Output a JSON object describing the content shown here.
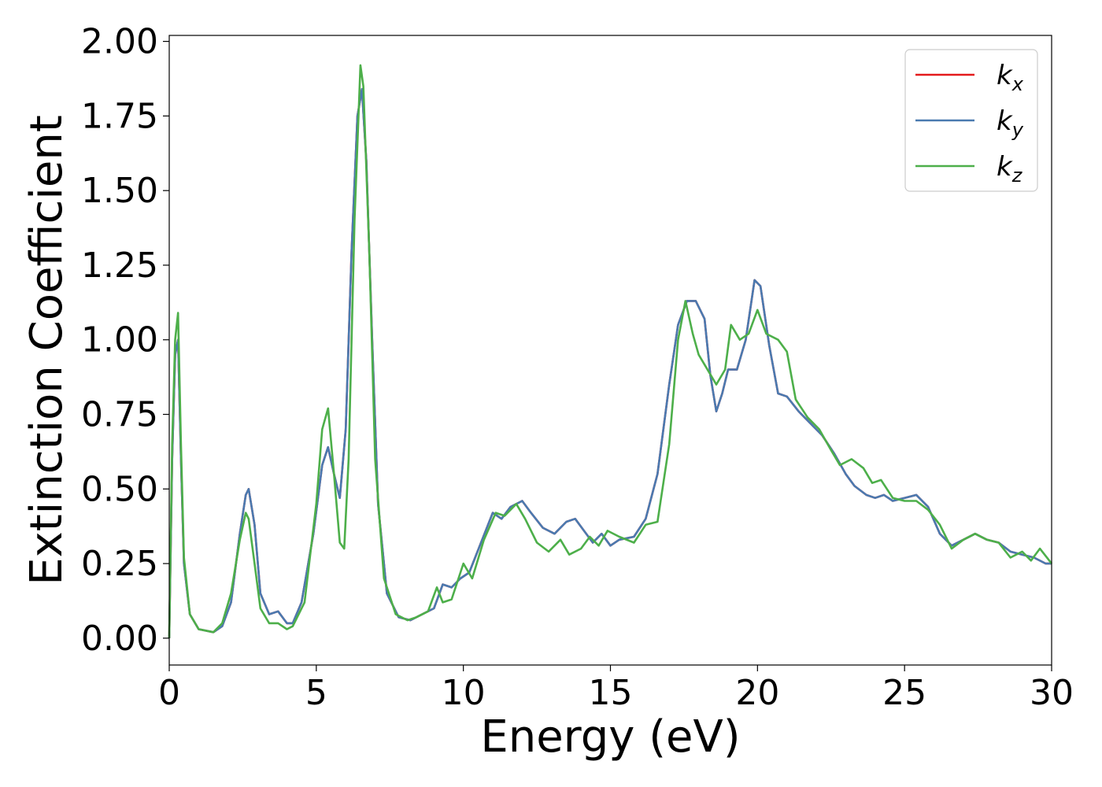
{
  "chart_data": {
    "type": "line",
    "xlabel": "Energy (eV)",
    "ylabel": "Extinction Coefficient",
    "xlim": [
      0,
      30
    ],
    "ylim": [
      -0.09,
      2.02
    ],
    "x_ticks": [
      "0",
      "5",
      "10",
      "15",
      "20",
      "25",
      "30"
    ],
    "y_ticks": [
      "0.00",
      "0.25",
      "0.50",
      "0.75",
      "1.00",
      "1.25",
      "1.50",
      "1.75",
      "2.00"
    ],
    "grid": false,
    "legend_position": "top-right",
    "series": [
      {
        "name": "k_x",
        "label_main": "k",
        "label_sub": "x",
        "color": "#e41a1c",
        "points": [
          [
            0,
            0.0
          ],
          [
            0.1,
            0.6
          ],
          [
            0.2,
            0.95
          ],
          [
            0.3,
            1.0
          ],
          [
            0.4,
            0.6
          ],
          [
            0.5,
            0.25
          ],
          [
            0.7,
            0.08
          ],
          [
            1.0,
            0.03
          ],
          [
            1.5,
            0.02
          ],
          [
            1.8,
            0.04
          ],
          [
            2.1,
            0.12
          ],
          [
            2.4,
            0.35
          ],
          [
            2.6,
            0.48
          ],
          [
            2.7,
            0.5
          ],
          [
            2.9,
            0.38
          ],
          [
            3.1,
            0.15
          ],
          [
            3.4,
            0.08
          ],
          [
            3.7,
            0.09
          ],
          [
            4.0,
            0.05
          ],
          [
            4.2,
            0.05
          ],
          [
            4.5,
            0.12
          ],
          [
            4.9,
            0.35
          ],
          [
            5.2,
            0.58
          ],
          [
            5.4,
            0.64
          ],
          [
            5.6,
            0.55
          ],
          [
            5.8,
            0.47
          ],
          [
            6.0,
            0.7
          ],
          [
            6.2,
            1.3
          ],
          [
            6.4,
            1.75
          ],
          [
            6.55,
            1.84
          ],
          [
            6.7,
            1.6
          ],
          [
            6.9,
            1.0
          ],
          [
            7.1,
            0.45
          ],
          [
            7.4,
            0.15
          ],
          [
            7.8,
            0.07
          ],
          [
            8.2,
            0.06
          ],
          [
            8.6,
            0.08
          ],
          [
            9.0,
            0.1
          ],
          [
            9.3,
            0.18
          ],
          [
            9.6,
            0.17
          ],
          [
            9.9,
            0.2
          ],
          [
            10.2,
            0.22
          ],
          [
            10.6,
            0.32
          ],
          [
            11.0,
            0.42
          ],
          [
            11.3,
            0.4
          ],
          [
            11.6,
            0.44
          ],
          [
            12.0,
            0.46
          ],
          [
            12.3,
            0.42
          ],
          [
            12.7,
            0.37
          ],
          [
            13.1,
            0.35
          ],
          [
            13.5,
            0.39
          ],
          [
            13.8,
            0.4
          ],
          [
            14.1,
            0.36
          ],
          [
            14.4,
            0.32
          ],
          [
            14.7,
            0.35
          ],
          [
            15.0,
            0.31
          ],
          [
            15.3,
            0.33
          ],
          [
            15.8,
            0.34
          ],
          [
            16.2,
            0.4
          ],
          [
            16.6,
            0.55
          ],
          [
            17.0,
            0.85
          ],
          [
            17.3,
            1.05
          ],
          [
            17.6,
            1.13
          ],
          [
            17.9,
            1.13
          ],
          [
            18.2,
            1.07
          ],
          [
            18.4,
            0.88
          ],
          [
            18.6,
            0.76
          ],
          [
            18.8,
            0.82
          ],
          [
            19.0,
            0.9
          ],
          [
            19.3,
            0.9
          ],
          [
            19.6,
            1.0
          ],
          [
            19.9,
            1.2
          ],
          [
            20.1,
            1.18
          ],
          [
            20.4,
            0.98
          ],
          [
            20.7,
            0.82
          ],
          [
            21.0,
            0.81
          ],
          [
            21.4,
            0.76
          ],
          [
            21.8,
            0.72
          ],
          [
            22.2,
            0.68
          ],
          [
            22.6,
            0.62
          ],
          [
            23.0,
            0.55
          ],
          [
            23.3,
            0.51
          ],
          [
            23.7,
            0.48
          ],
          [
            24.0,
            0.47
          ],
          [
            24.3,
            0.48
          ],
          [
            24.6,
            0.46
          ],
          [
            25.0,
            0.47
          ],
          [
            25.4,
            0.48
          ],
          [
            25.8,
            0.44
          ],
          [
            26.2,
            0.35
          ],
          [
            26.6,
            0.31
          ],
          [
            27.0,
            0.33
          ],
          [
            27.4,
            0.35
          ],
          [
            27.8,
            0.33
          ],
          [
            28.2,
            0.32
          ],
          [
            28.6,
            0.29
          ],
          [
            29.0,
            0.28
          ],
          [
            29.4,
            0.27
          ],
          [
            29.8,
            0.25
          ],
          [
            30.0,
            0.25
          ]
        ]
      },
      {
        "name": "k_y",
        "label_main": "k",
        "label_sub": "y",
        "color": "#4a7ab0",
        "points": [
          [
            0,
            0.0
          ],
          [
            0.1,
            0.6
          ],
          [
            0.2,
            0.95
          ],
          [
            0.3,
            1.0
          ],
          [
            0.4,
            0.6
          ],
          [
            0.5,
            0.25
          ],
          [
            0.7,
            0.08
          ],
          [
            1.0,
            0.03
          ],
          [
            1.5,
            0.02
          ],
          [
            1.8,
            0.04
          ],
          [
            2.1,
            0.12
          ],
          [
            2.4,
            0.35
          ],
          [
            2.6,
            0.48
          ],
          [
            2.7,
            0.5
          ],
          [
            2.9,
            0.38
          ],
          [
            3.1,
            0.15
          ],
          [
            3.4,
            0.08
          ],
          [
            3.7,
            0.09
          ],
          [
            4.0,
            0.05
          ],
          [
            4.2,
            0.05
          ],
          [
            4.5,
            0.12
          ],
          [
            4.9,
            0.35
          ],
          [
            5.2,
            0.58
          ],
          [
            5.4,
            0.64
          ],
          [
            5.6,
            0.55
          ],
          [
            5.8,
            0.47
          ],
          [
            6.0,
            0.7
          ],
          [
            6.2,
            1.3
          ],
          [
            6.4,
            1.75
          ],
          [
            6.55,
            1.84
          ],
          [
            6.7,
            1.6
          ],
          [
            6.9,
            1.0
          ],
          [
            7.1,
            0.45
          ],
          [
            7.4,
            0.15
          ],
          [
            7.8,
            0.07
          ],
          [
            8.2,
            0.06
          ],
          [
            8.6,
            0.08
          ],
          [
            9.0,
            0.1
          ],
          [
            9.3,
            0.18
          ],
          [
            9.6,
            0.17
          ],
          [
            9.9,
            0.2
          ],
          [
            10.2,
            0.22
          ],
          [
            10.6,
            0.32
          ],
          [
            11.0,
            0.42
          ],
          [
            11.3,
            0.4
          ],
          [
            11.6,
            0.44
          ],
          [
            12.0,
            0.46
          ],
          [
            12.3,
            0.42
          ],
          [
            12.7,
            0.37
          ],
          [
            13.1,
            0.35
          ],
          [
            13.5,
            0.39
          ],
          [
            13.8,
            0.4
          ],
          [
            14.1,
            0.36
          ],
          [
            14.4,
            0.32
          ],
          [
            14.7,
            0.35
          ],
          [
            15.0,
            0.31
          ],
          [
            15.3,
            0.33
          ],
          [
            15.8,
            0.34
          ],
          [
            16.2,
            0.4
          ],
          [
            16.6,
            0.55
          ],
          [
            17.0,
            0.85
          ],
          [
            17.3,
            1.05
          ],
          [
            17.6,
            1.13
          ],
          [
            17.9,
            1.13
          ],
          [
            18.2,
            1.07
          ],
          [
            18.4,
            0.88
          ],
          [
            18.6,
            0.76
          ],
          [
            18.8,
            0.82
          ],
          [
            19.0,
            0.9
          ],
          [
            19.3,
            0.9
          ],
          [
            19.6,
            1.0
          ],
          [
            19.9,
            1.2
          ],
          [
            20.1,
            1.18
          ],
          [
            20.4,
            0.98
          ],
          [
            20.7,
            0.82
          ],
          [
            21.0,
            0.81
          ],
          [
            21.4,
            0.76
          ],
          [
            21.8,
            0.72
          ],
          [
            22.2,
            0.68
          ],
          [
            22.6,
            0.62
          ],
          [
            23.0,
            0.55
          ],
          [
            23.3,
            0.51
          ],
          [
            23.7,
            0.48
          ],
          [
            24.0,
            0.47
          ],
          [
            24.3,
            0.48
          ],
          [
            24.6,
            0.46
          ],
          [
            25.0,
            0.47
          ],
          [
            25.4,
            0.48
          ],
          [
            25.8,
            0.44
          ],
          [
            26.2,
            0.35
          ],
          [
            26.6,
            0.31
          ],
          [
            27.0,
            0.33
          ],
          [
            27.4,
            0.35
          ],
          [
            27.8,
            0.33
          ],
          [
            28.2,
            0.32
          ],
          [
            28.6,
            0.29
          ],
          [
            29.0,
            0.28
          ],
          [
            29.4,
            0.27
          ],
          [
            29.8,
            0.25
          ],
          [
            30.0,
            0.25
          ]
        ]
      },
      {
        "name": "k_z",
        "label_main": "k",
        "label_sub": "z",
        "color": "#4daf4a",
        "points": [
          [
            0,
            0.0
          ],
          [
            0.1,
            0.65
          ],
          [
            0.2,
            1.0
          ],
          [
            0.3,
            1.09
          ],
          [
            0.4,
            0.65
          ],
          [
            0.5,
            0.27
          ],
          [
            0.7,
            0.08
          ],
          [
            1.0,
            0.03
          ],
          [
            1.5,
            0.02
          ],
          [
            1.8,
            0.05
          ],
          [
            2.1,
            0.15
          ],
          [
            2.4,
            0.33
          ],
          [
            2.6,
            0.42
          ],
          [
            2.7,
            0.4
          ],
          [
            2.9,
            0.25
          ],
          [
            3.1,
            0.1
          ],
          [
            3.4,
            0.05
          ],
          [
            3.7,
            0.05
          ],
          [
            4.0,
            0.03
          ],
          [
            4.2,
            0.04
          ],
          [
            4.6,
            0.12
          ],
          [
            5.0,
            0.45
          ],
          [
            5.2,
            0.7
          ],
          [
            5.4,
            0.77
          ],
          [
            5.6,
            0.55
          ],
          [
            5.8,
            0.32
          ],
          [
            5.95,
            0.3
          ],
          [
            6.1,
            0.6
          ],
          [
            6.3,
            1.4
          ],
          [
            6.5,
            1.92
          ],
          [
            6.6,
            1.85
          ],
          [
            6.8,
            1.3
          ],
          [
            7.0,
            0.6
          ],
          [
            7.3,
            0.2
          ],
          [
            7.7,
            0.08
          ],
          [
            8.1,
            0.06
          ],
          [
            8.4,
            0.07
          ],
          [
            8.8,
            0.09
          ],
          [
            9.1,
            0.17
          ],
          [
            9.3,
            0.12
          ],
          [
            9.6,
            0.13
          ],
          [
            10.0,
            0.25
          ],
          [
            10.3,
            0.2
          ],
          [
            10.7,
            0.33
          ],
          [
            11.1,
            0.42
          ],
          [
            11.4,
            0.41
          ],
          [
            11.8,
            0.45
          ],
          [
            12.1,
            0.4
          ],
          [
            12.5,
            0.32
          ],
          [
            12.9,
            0.29
          ],
          [
            13.3,
            0.33
          ],
          [
            13.6,
            0.28
          ],
          [
            14.0,
            0.3
          ],
          [
            14.3,
            0.34
          ],
          [
            14.6,
            0.31
          ],
          [
            14.9,
            0.36
          ],
          [
            15.3,
            0.34
          ],
          [
            15.8,
            0.32
          ],
          [
            16.2,
            0.38
          ],
          [
            16.6,
            0.39
          ],
          [
            17.0,
            0.65
          ],
          [
            17.3,
            1.0
          ],
          [
            17.55,
            1.13
          ],
          [
            17.8,
            1.02
          ],
          [
            18.0,
            0.95
          ],
          [
            18.3,
            0.9
          ],
          [
            18.6,
            0.85
          ],
          [
            18.9,
            0.9
          ],
          [
            19.1,
            1.05
          ],
          [
            19.4,
            1.0
          ],
          [
            19.7,
            1.02
          ],
          [
            20.0,
            1.1
          ],
          [
            20.3,
            1.02
          ],
          [
            20.7,
            1.0
          ],
          [
            21.0,
            0.96
          ],
          [
            21.3,
            0.8
          ],
          [
            21.7,
            0.74
          ],
          [
            22.1,
            0.7
          ],
          [
            22.5,
            0.63
          ],
          [
            22.8,
            0.58
          ],
          [
            23.2,
            0.6
          ],
          [
            23.6,
            0.57
          ],
          [
            23.9,
            0.52
          ],
          [
            24.2,
            0.53
          ],
          [
            24.6,
            0.47
          ],
          [
            25.0,
            0.46
          ],
          [
            25.4,
            0.46
          ],
          [
            25.8,
            0.43
          ],
          [
            26.2,
            0.38
          ],
          [
            26.6,
            0.3
          ],
          [
            27.0,
            0.33
          ],
          [
            27.4,
            0.35
          ],
          [
            27.8,
            0.33
          ],
          [
            28.2,
            0.32
          ],
          [
            28.6,
            0.27
          ],
          [
            29.0,
            0.29
          ],
          [
            29.3,
            0.26
          ],
          [
            29.6,
            0.3
          ],
          [
            30.0,
            0.25
          ]
        ]
      }
    ]
  }
}
